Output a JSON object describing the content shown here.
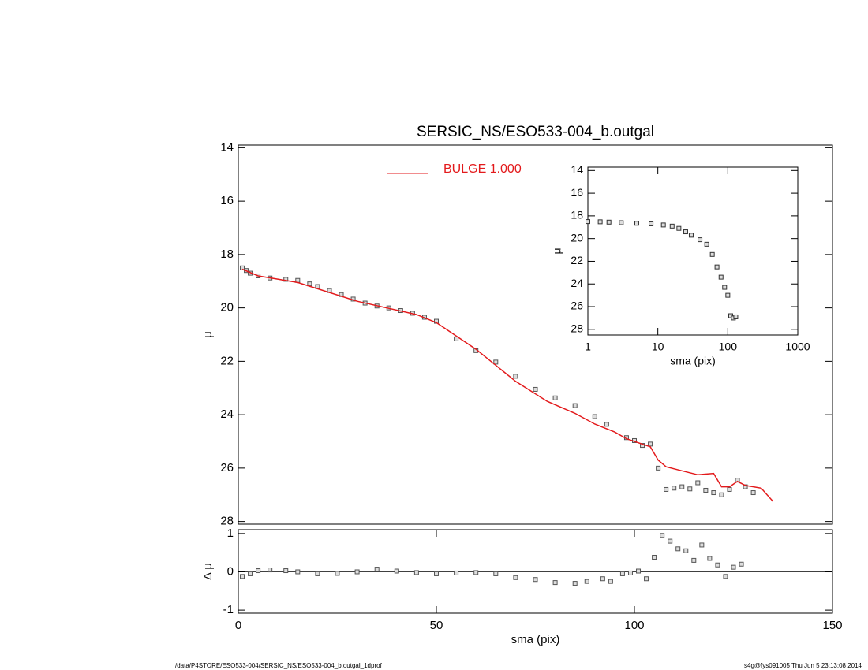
{
  "chart_data": [
    {
      "type": "scatter",
      "title": "SERSIC_NS/ESO533-004_b.outgal",
      "ylabel": "μ",
      "xlim": [
        0,
        150
      ],
      "ylim": [
        28.1,
        13.9
      ],
      "yticks": [
        14,
        16,
        18,
        20,
        22,
        24,
        26,
        28
      ],
      "series": [
        {
          "style": "markers",
          "color": "#555555",
          "x": [
            1,
            2,
            3,
            5,
            8,
            12,
            15,
            18,
            20,
            23,
            26,
            29,
            32,
            35,
            38,
            41,
            44,
            47,
            50,
            55,
            60,
            65,
            70,
            75,
            80,
            85,
            90,
            93,
            98,
            100,
            102,
            104,
            106,
            108,
            110,
            112,
            114,
            116,
            118,
            120,
            122,
            124,
            126,
            128,
            130
          ],
          "values": [
            18.5,
            18.6,
            18.7,
            18.8,
            18.88,
            18.93,
            18.97,
            19.1,
            19.2,
            19.35,
            19.5,
            19.67,
            19.82,
            19.93,
            20.0,
            20.1,
            20.2,
            20.35,
            20.5,
            21.16,
            21.6,
            22.03,
            22.56,
            23.05,
            23.37,
            23.66,
            24.07,
            24.36,
            24.86,
            24.97,
            25.15,
            25.1,
            26.0,
            26.8,
            26.75,
            26.7,
            26.78,
            26.55,
            26.83,
            26.92,
            27.0,
            26.8,
            26.45,
            26.7,
            26.92
          ]
        },
        {
          "style": "line",
          "name": "BULGE  1.000",
          "color": "#e31a1c",
          "x": [
            1,
            5,
            15,
            30,
            45,
            50,
            60,
            70,
            78,
            85,
            90,
            95,
            98,
            102,
            104,
            106,
            108,
            112,
            116,
            120,
            122,
            124,
            126,
            128,
            132,
            135
          ],
          "values": [
            18.55,
            18.8,
            19.05,
            19.75,
            20.25,
            20.55,
            21.55,
            22.75,
            23.5,
            23.95,
            24.35,
            24.65,
            24.9,
            25.1,
            25.2,
            25.7,
            25.95,
            26.1,
            26.25,
            26.2,
            26.7,
            26.7,
            26.5,
            26.65,
            26.75,
            27.25
          ]
        }
      ]
    },
    {
      "type": "scatter",
      "ylabel": "Δ μ",
      "xlabel": "sma (pix)",
      "xlim": [
        0,
        150
      ],
      "xticks": [
        0,
        50,
        100,
        150
      ],
      "ylim": [
        -1.08,
        1.1
      ],
      "yticks": [
        -1,
        0,
        1
      ],
      "series": [
        {
          "style": "markers",
          "color": "#555555",
          "x": [
            1,
            3,
            5,
            8,
            12,
            15,
            20,
            25,
            30,
            35,
            40,
            45,
            50,
            55,
            60,
            65,
            70,
            75,
            80,
            85,
            88,
            92,
            94,
            97,
            99,
            101,
            103,
            105,
            107,
            109,
            111,
            113,
            115,
            117,
            119,
            121,
            123,
            125,
            127
          ],
          "values": [
            -0.12,
            -0.05,
            0.03,
            0.05,
            0.03,
            0.0,
            -0.05,
            -0.04,
            0.0,
            0.07,
            0.02,
            -0.02,
            -0.05,
            -0.03,
            -0.02,
            -0.05,
            -0.15,
            -0.2,
            -0.28,
            -0.3,
            -0.25,
            -0.18,
            -0.25,
            -0.05,
            -0.03,
            0.02,
            -0.18,
            0.38,
            0.95,
            0.8,
            0.6,
            0.55,
            0.3,
            0.7,
            0.35,
            0.18,
            -0.12,
            0.12,
            0.2
          ]
        }
      ]
    },
    {
      "type": "scatter",
      "xlog": true,
      "ylabel": "μ",
      "xlabel": "sma (pix)",
      "xlim": [
        1,
        1000
      ],
      "xticks": [
        1,
        10,
        100,
        1000
      ],
      "ylim": [
        28.5,
        13.7
      ],
      "yticks": [
        14,
        16,
        18,
        20,
        22,
        24,
        26,
        28
      ],
      "series": [
        {
          "style": "markers",
          "color": "#333333",
          "x": [
            1,
            1.5,
            2,
            3,
            5,
            8,
            12,
            16,
            20,
            25,
            30,
            40,
            50,
            60,
            70,
            80,
            90,
            100,
            110,
            120,
            130
          ],
          "values": [
            18.5,
            18.52,
            18.55,
            18.6,
            18.65,
            18.7,
            18.8,
            18.9,
            19.1,
            19.4,
            19.7,
            20.1,
            20.5,
            21.4,
            22.5,
            23.4,
            24.3,
            25.0,
            26.8,
            27.0,
            26.9
          ]
        }
      ]
    }
  ],
  "footer": {
    "left": "/data/P4STORE/ESO533-004/SERSIC_NS/ESO533-004_b.outgal_1dprof",
    "right": "s4g@fys091005  Thu Jun  5 23:13:08 2014"
  }
}
